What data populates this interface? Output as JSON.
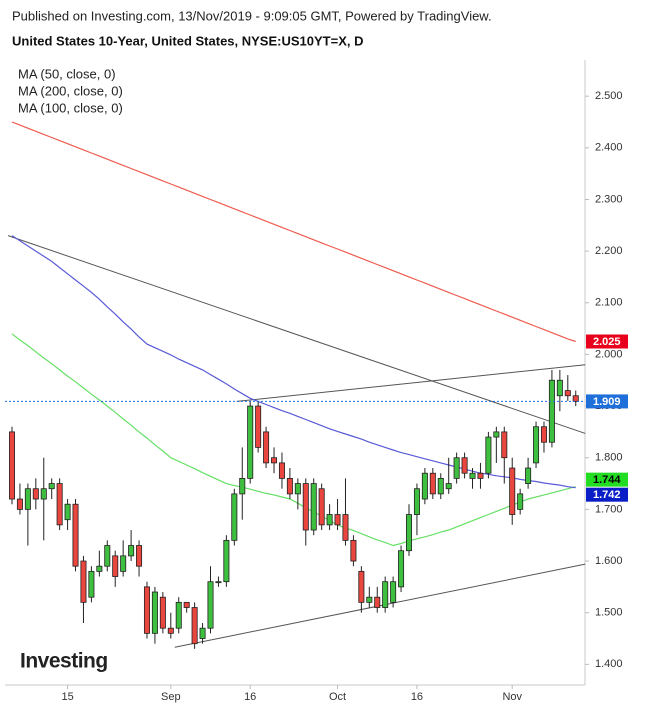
{
  "header": {
    "published": "Published on Investing.com, 13/Nov/2019 - 9:09:05 GMT, Powered by TradingView.",
    "title": "United States 10-Year, United States, NYSE:US10YT=X, D"
  },
  "logo": "Investing",
  "chart_data": {
    "type": "candlestick",
    "up_color": "#3fbf3f",
    "down_color": "#e8463f",
    "categories": [
      null,
      null,
      null,
      null,
      null,
      null,
      null,
      "15",
      null,
      null,
      null,
      null,
      null,
      null,
      null,
      null,
      null,
      null,
      null,
      null,
      "Sep",
      null,
      null,
      null,
      null,
      null,
      null,
      null,
      null,
      null,
      "16",
      null,
      null,
      null,
      null,
      null,
      null,
      null,
      null,
      null,
      null,
      "Oct",
      null,
      null,
      null,
      null,
      null,
      null,
      null,
      null,
      null,
      "16",
      null,
      null,
      null,
      null,
      null,
      null,
      null,
      null,
      null,
      null,
      null,
      "Nov",
      null,
      null,
      null,
      null,
      null,
      null,
      null,
      null
    ],
    "open": [
      1.85,
      1.72,
      1.7,
      1.74,
      1.72,
      1.74,
      1.75,
      1.68,
      1.71,
      1.6,
      1.53,
      1.58,
      1.59,
      1.61,
      1.58,
      1.61,
      1.63,
      1.55,
      1.46,
      1.53,
      1.47,
      1.47,
      1.52,
      1.51,
      1.45,
      1.47,
      1.56,
      1.56,
      1.64,
      1.73,
      1.76,
      1.9,
      1.85,
      1.8,
      1.79,
      1.76,
      1.73,
      1.75,
      1.66,
      1.74,
      1.67,
      1.69,
      1.69,
      1.64,
      1.58,
      1.52,
      1.53,
      1.51,
      1.52,
      1.55,
      1.62,
      1.69,
      1.72,
      1.77,
      1.73,
      1.74,
      1.76,
      1.8,
      1.76,
      1.77,
      1.77,
      1.84,
      1.85,
      1.78,
      1.7,
      1.75,
      1.79,
      1.86,
      1.83,
      1.92,
      1.93,
      1.92
    ],
    "high": [
      1.86,
      1.75,
      1.75,
      1.76,
      1.8,
      1.76,
      1.76,
      1.72,
      1.72,
      1.61,
      1.59,
      1.62,
      1.64,
      1.62,
      1.64,
      1.66,
      1.64,
      1.56,
      1.55,
      1.54,
      1.5,
      1.53,
      1.52,
      1.52,
      1.48,
      1.59,
      1.57,
      1.65,
      1.74,
      1.82,
      1.91,
      1.91,
      1.86,
      1.82,
      1.81,
      1.78,
      1.76,
      1.76,
      1.76,
      1.75,
      1.71,
      1.72,
      1.76,
      1.65,
      1.59,
      1.55,
      1.55,
      1.57,
      1.57,
      1.63,
      1.71,
      1.75,
      1.78,
      1.78,
      1.77,
      1.8,
      1.81,
      1.81,
      1.78,
      1.79,
      1.85,
      1.86,
      1.86,
      1.8,
      1.74,
      1.8,
      1.87,
      1.87,
      1.97,
      1.97,
      1.96,
      1.93
    ],
    "low": [
      1.71,
      1.69,
      1.63,
      1.7,
      1.64,
      1.72,
      1.66,
      1.66,
      1.58,
      1.48,
      1.52,
      1.57,
      1.58,
      1.55,
      1.57,
      1.6,
      1.57,
      1.45,
      1.44,
      1.46,
      1.45,
      1.46,
      1.5,
      1.43,
      1.44,
      1.46,
      1.55,
      1.55,
      1.63,
      1.68,
      1.75,
      1.81,
      1.78,
      1.77,
      1.74,
      1.72,
      1.7,
      1.63,
      1.65,
      1.66,
      1.66,
      1.66,
      1.63,
      1.59,
      1.5,
      1.51,
      1.5,
      1.5,
      1.51,
      1.54,
      1.61,
      1.65,
      1.71,
      1.72,
      1.72,
      1.73,
      1.75,
      1.76,
      1.74,
      1.74,
      1.76,
      1.79,
      1.75,
      1.67,
      1.69,
      1.74,
      1.78,
      1.81,
      1.82,
      1.89,
      1.91,
      1.9
    ],
    "close": [
      1.72,
      1.7,
      1.74,
      1.72,
      1.74,
      1.75,
      1.67,
      1.71,
      1.59,
      1.52,
      1.58,
      1.59,
      1.63,
      1.57,
      1.61,
      1.63,
      1.59,
      1.46,
      1.54,
      1.47,
      1.46,
      1.52,
      1.51,
      1.44,
      1.47,
      1.56,
      1.56,
      1.64,
      1.73,
      1.76,
      1.9,
      1.82,
      1.79,
      1.79,
      1.76,
      1.73,
      1.75,
      1.66,
      1.75,
      1.67,
      1.69,
      1.67,
      1.64,
      1.6,
      1.52,
      1.53,
      1.51,
      1.56,
      1.56,
      1.62,
      1.69,
      1.74,
      1.77,
      1.73,
      1.76,
      1.75,
      1.8,
      1.77,
      1.77,
      1.76,
      1.84,
      1.85,
      1.8,
      1.69,
      1.73,
      1.78,
      1.86,
      1.83,
      1.95,
      1.95,
      1.92,
      1.909
    ],
    "series": [
      {
        "name": "MA (50, close, 0)",
        "color": "#66e066",
        "values": [
          2.04,
          2.028,
          2.017,
          2.005,
          1.993,
          1.982,
          1.97,
          1.958,
          1.947,
          1.935,
          1.923,
          1.912,
          1.9,
          1.888,
          1.875,
          1.863,
          1.85,
          1.838,
          1.825,
          1.813,
          1.8,
          1.793,
          1.786,
          1.779,
          1.771,
          1.764,
          1.757,
          1.75,
          1.746,
          1.743,
          1.739,
          1.735,
          1.731,
          1.728,
          1.724,
          1.72,
          1.712,
          1.703,
          1.695,
          1.687,
          1.678,
          1.67,
          1.664,
          1.659,
          1.653,
          1.647,
          1.641,
          1.636,
          1.63,
          1.634,
          1.639,
          1.643,
          1.647,
          1.651,
          1.656,
          1.66,
          1.666,
          1.672,
          1.678,
          1.684,
          1.69,
          1.696,
          1.702,
          1.708,
          1.714,
          1.72,
          1.724,
          1.728,
          1.732,
          1.736,
          1.74,
          1.744
        ],
        "badge_color": "#22dd22",
        "badge_text": "#000000"
      },
      {
        "name": "MA (200, close, 0)",
        "color": "#ef5b4f",
        "values": [
          2.45,
          2.444,
          2.438,
          2.432,
          2.426,
          2.42,
          2.414,
          2.408,
          2.402,
          2.396,
          2.39,
          2.384,
          2.378,
          2.372,
          2.366,
          2.36,
          2.354,
          2.348,
          2.342,
          2.336,
          2.33,
          2.324,
          2.318,
          2.312,
          2.306,
          2.3,
          2.294,
          2.288,
          2.282,
          2.276,
          2.27,
          2.264,
          2.258,
          2.252,
          2.246,
          2.24,
          2.234,
          2.228,
          2.222,
          2.216,
          2.21,
          2.204,
          2.198,
          2.192,
          2.186,
          2.18,
          2.174,
          2.168,
          2.162,
          2.156,
          2.15,
          2.144,
          2.138,
          2.132,
          2.126,
          2.12,
          2.114,
          2.108,
          2.102,
          2.096,
          2.09,
          2.084,
          2.078,
          2.072,
          2.066,
          2.06,
          2.054,
          2.048,
          2.042,
          2.036,
          2.03,
          2.025
        ],
        "badge_color": "#e8001c",
        "badge_text": "#ffffff"
      },
      {
        "name": "MA (100, close, 0)",
        "color": "#5a5ad8",
        "values": [
          2.23,
          2.22,
          2.21,
          2.2,
          2.19,
          2.18,
          2.168,
          2.156,
          2.144,
          2.132,
          2.12,
          2.107,
          2.092,
          2.078,
          2.063,
          2.049,
          2.034,
          2.02,
          2.013,
          2.006,
          1.999,
          1.991,
          1.984,
          1.977,
          1.97,
          1.961,
          1.952,
          1.943,
          1.933,
          1.924,
          1.915,
          1.909,
          1.903,
          1.897,
          1.891,
          1.886,
          1.88,
          1.874,
          1.868,
          1.862,
          1.856,
          1.851,
          1.846,
          1.841,
          1.836,
          1.83,
          1.825,
          1.82,
          1.815,
          1.81,
          1.806,
          1.802,
          1.798,
          1.794,
          1.79,
          1.786,
          1.782,
          1.778,
          1.774,
          1.77,
          1.768,
          1.765,
          1.763,
          1.761,
          1.758,
          1.756,
          1.754,
          1.751,
          1.749,
          1.747,
          1.744,
          1.742
        ],
        "badge_color": "#0a1ec8",
        "badge_text": "#ffffff"
      }
    ],
    "last_price_color": "#1e6fd9",
    "trendlines": [
      {
        "x": [
          -0.5,
          72.2
        ],
        "values": [
          2.23,
          1.847
        ]
      },
      {
        "x": [
          20.5,
          72.2
        ],
        "values": [
          1.433,
          1.594
        ]
      },
      {
        "x": [
          28.3,
          72.2
        ],
        "values": [
          1.909,
          1.98
        ]
      }
    ],
    "ylim": [
      1.36,
      2.57
    ],
    "yticks": [
      {
        "value": 1.4,
        "label": "1.400"
      },
      {
        "value": 1.5,
        "label": "1.500"
      },
      {
        "value": 1.6,
        "label": "1.600"
      },
      {
        "value": 1.7,
        "label": "1.700"
      },
      {
        "value": 1.8,
        "label": "1.800"
      },
      {
        "value": 1.9,
        "label": "1.900"
      },
      {
        "value": 2.0,
        "label": "2.000"
      },
      {
        "value": 2.1,
        "label": "2.100"
      },
      {
        "value": 2.2,
        "label": "2.200"
      },
      {
        "value": 2.3,
        "label": "2.300"
      },
      {
        "value": 2.4,
        "label": "2.400"
      },
      {
        "value": 2.5,
        "label": "2.500"
      }
    ]
  }
}
